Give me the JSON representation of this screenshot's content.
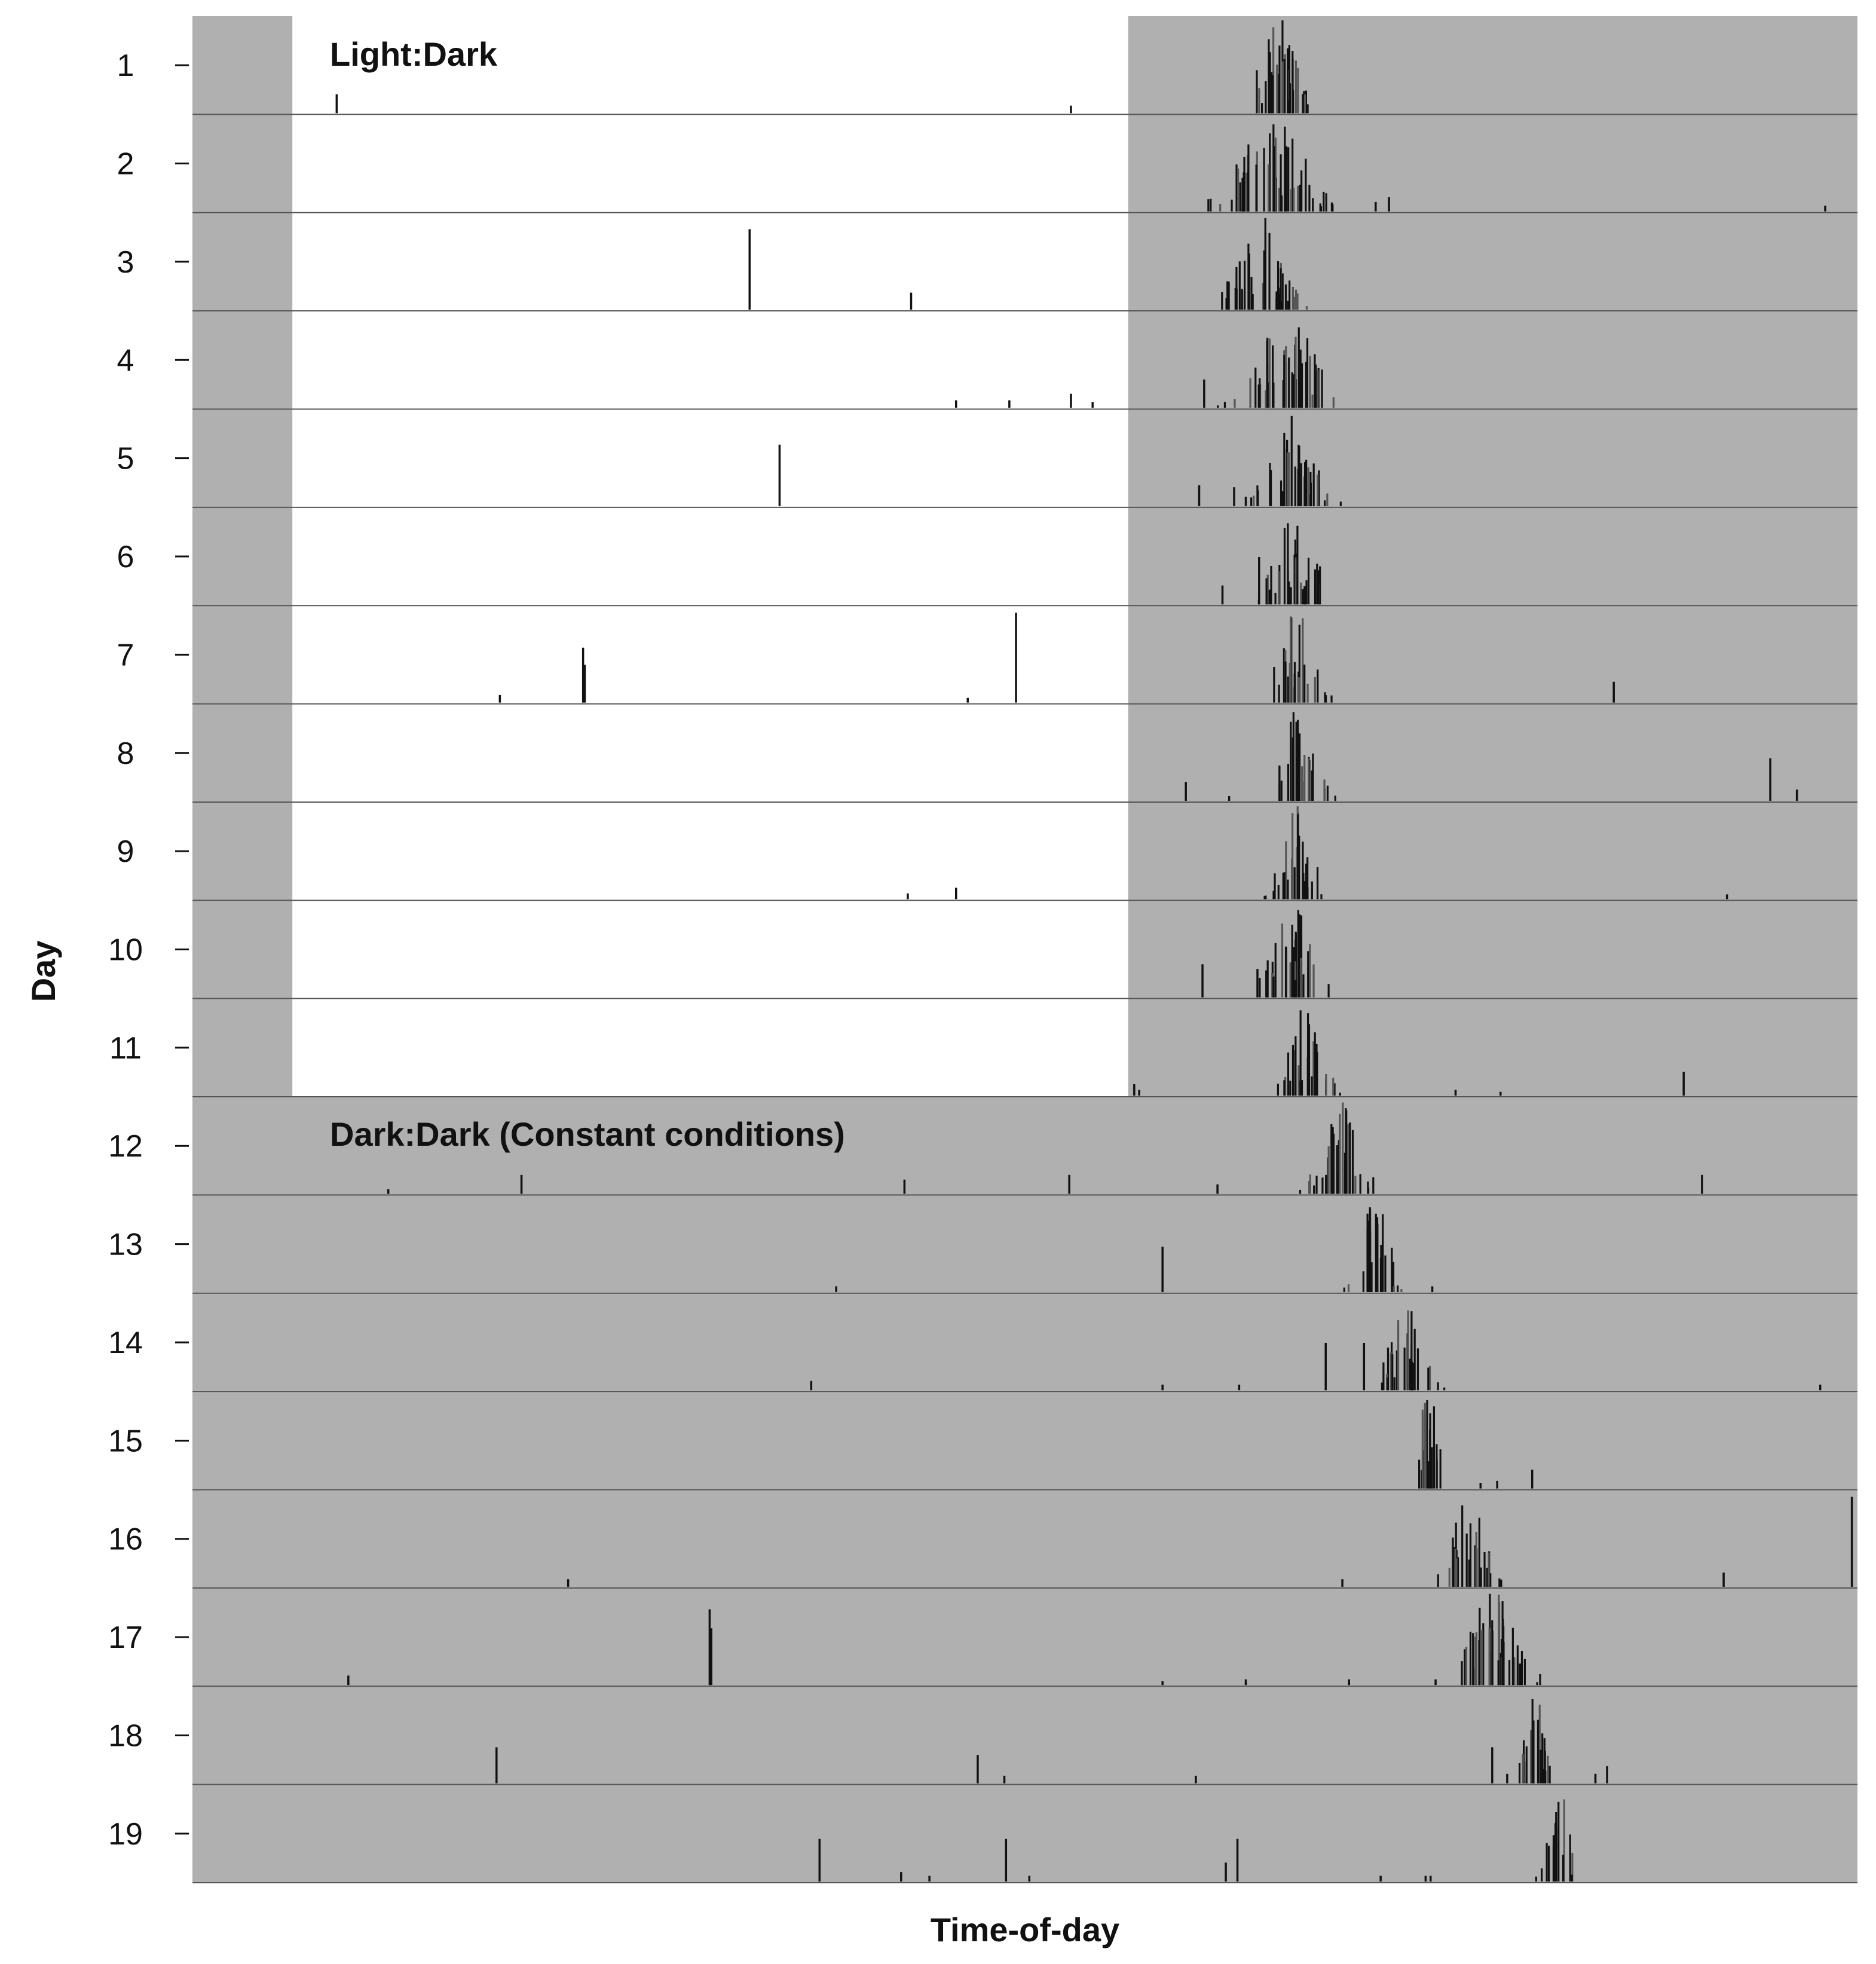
{
  "chart_data": {
    "type": "actogram",
    "xlabel": "Time-of-day",
    "ylabel": "Day",
    "days": [
      1,
      2,
      3,
      4,
      5,
      6,
      7,
      8,
      9,
      10,
      11,
      12,
      13,
      14,
      15,
      16,
      17,
      18,
      19
    ],
    "x_range": [
      0,
      1
    ],
    "light_dark_boundary_day": 11,
    "light_phase": [
      0.06,
      0.562
    ],
    "annotations": [
      {
        "text": "Light:Dark",
        "day": 1
      },
      {
        "text": "Dark:Dark (Constant conditions)",
        "day": 12
      }
    ],
    "colors": {
      "dark": "#b0b0b0",
      "light": "#ffffff",
      "activity": "#111111",
      "row_line": "#555555"
    },
    "activity_onsets": [
      {
        "day": 1,
        "center": 0.652,
        "width": 0.038
      },
      {
        "day": 2,
        "center": 0.648,
        "width": 0.06
      },
      {
        "day": 3,
        "center": 0.641,
        "width": 0.04
      },
      {
        "day": 4,
        "center": 0.657,
        "width": 0.052
      },
      {
        "day": 5,
        "center": 0.66,
        "width": 0.04
      },
      {
        "day": 6,
        "center": 0.662,
        "width": 0.035
      },
      {
        "day": 7,
        "center": 0.662,
        "width": 0.03
      },
      {
        "day": 8,
        "center": 0.664,
        "width": 0.03
      },
      {
        "day": 9,
        "center": 0.663,
        "width": 0.03
      },
      {
        "day": 10,
        "center": 0.66,
        "width": 0.035
      },
      {
        "day": 11,
        "center": 0.668,
        "width": 0.03
      },
      {
        "day": 12,
        "center": 0.69,
        "width": 0.035
      },
      {
        "day": 13,
        "center": 0.71,
        "width": 0.025
      },
      {
        "day": 14,
        "center": 0.728,
        "width": 0.03
      },
      {
        "day": 15,
        "center": 0.742,
        "width": 0.02
      },
      {
        "day": 16,
        "center": 0.765,
        "width": 0.03
      },
      {
        "day": 17,
        "center": 0.78,
        "width": 0.045
      },
      {
        "day": 18,
        "center": 0.805,
        "width": 0.02
      },
      {
        "day": 19,
        "center": 0.82,
        "width": 0.02
      }
    ],
    "sporadic_events": [
      {
        "day": 1,
        "x": 0.086,
        "h": 0.2
      },
      {
        "day": 1,
        "x": 0.527,
        "h": 0.08
      },
      {
        "day": 2,
        "x": 0.71,
        "h": 0.1
      },
      {
        "day": 2,
        "x": 0.718,
        "h": 0.15
      },
      {
        "day": 2,
        "x": 0.98,
        "h": 0.06
      },
      {
        "day": 3,
        "x": 0.334,
        "h": 0.85
      },
      {
        "day": 3,
        "x": 0.431,
        "h": 0.18
      },
      {
        "day": 3,
        "x": 0.621,
        "h": 0.3
      },
      {
        "day": 4,
        "x": 0.458,
        "h": 0.08
      },
      {
        "day": 4,
        "x": 0.49,
        "h": 0.08
      },
      {
        "day": 4,
        "x": 0.527,
        "h": 0.15
      },
      {
        "day": 4,
        "x": 0.54,
        "h": 0.06
      },
      {
        "day": 4,
        "x": 0.607,
        "h": 0.3
      },
      {
        "day": 5,
        "x": 0.352,
        "h": 0.65
      },
      {
        "day": 5,
        "x": 0.604,
        "h": 0.22
      },
      {
        "day": 5,
        "x": 0.625,
        "h": 0.2
      },
      {
        "day": 5,
        "x": 0.632,
        "h": 0.1
      },
      {
        "day": 6,
        "x": 0.618,
        "h": 0.2
      },
      {
        "day": 6,
        "x": 0.64,
        "h": 0.5
      },
      {
        "day": 7,
        "x": 0.184,
        "h": 0.08
      },
      {
        "day": 7,
        "x": 0.234,
        "h": 0.58
      },
      {
        "day": 7,
        "x": 0.235,
        "h": 0.4
      },
      {
        "day": 7,
        "x": 0.465,
        "h": 0.05
      },
      {
        "day": 7,
        "x": 0.494,
        "h": 0.95
      },
      {
        "day": 7,
        "x": 0.853,
        "h": 0.22
      },
      {
        "day": 8,
        "x": 0.596,
        "h": 0.2
      },
      {
        "day": 8,
        "x": 0.622,
        "h": 0.05
      },
      {
        "day": 8,
        "x": 0.947,
        "h": 0.45
      },
      {
        "day": 8,
        "x": 0.963,
        "h": 0.12
      },
      {
        "day": 9,
        "x": 0.429,
        "h": 0.06
      },
      {
        "day": 9,
        "x": 0.458,
        "h": 0.12
      },
      {
        "day": 9,
        "x": 0.921,
        "h": 0.05
      },
      {
        "day": 10,
        "x": 0.606,
        "h": 0.35
      },
      {
        "day": 10,
        "x": 0.639,
        "h": 0.3
      },
      {
        "day": 11,
        "x": 0.565,
        "h": 0.12
      },
      {
        "day": 11,
        "x": 0.568,
        "h": 0.06
      },
      {
        "day": 11,
        "x": 0.758,
        "h": 0.06
      },
      {
        "day": 11,
        "x": 0.785,
        "h": 0.04
      },
      {
        "day": 11,
        "x": 0.895,
        "h": 0.25
      },
      {
        "day": 12,
        "x": 0.117,
        "h": 0.05
      },
      {
        "day": 12,
        "x": 0.197,
        "h": 0.2
      },
      {
        "day": 12,
        "x": 0.427,
        "h": 0.15
      },
      {
        "day": 12,
        "x": 0.526,
        "h": 0.2
      },
      {
        "day": 12,
        "x": 0.615,
        "h": 0.1
      },
      {
        "day": 12,
        "x": 0.906,
        "h": 0.2
      },
      {
        "day": 13,
        "x": 0.386,
        "h": 0.06
      },
      {
        "day": 13,
        "x": 0.582,
        "h": 0.48
      },
      {
        "day": 13,
        "x": 0.744,
        "h": 0.06
      },
      {
        "day": 14,
        "x": 0.371,
        "h": 0.1
      },
      {
        "day": 14,
        "x": 0.582,
        "h": 0.06
      },
      {
        "day": 14,
        "x": 0.628,
        "h": 0.06
      },
      {
        "day": 14,
        "x": 0.68,
        "h": 0.5
      },
      {
        "day": 14,
        "x": 0.703,
        "h": 0.5
      },
      {
        "day": 14,
        "x": 0.977,
        "h": 0.06
      },
      {
        "day": 15,
        "x": 0.773,
        "h": 0.06
      },
      {
        "day": 15,
        "x": 0.783,
        "h": 0.08
      },
      {
        "day": 15,
        "x": 0.804,
        "h": 0.2
      },
      {
        "day": 16,
        "x": 0.225,
        "h": 0.08
      },
      {
        "day": 16,
        "x": 0.69,
        "h": 0.08
      },
      {
        "day": 16,
        "x": 0.919,
        "h": 0.15
      },
      {
        "day": 16,
        "x": 0.996,
        "h": 0.95
      },
      {
        "day": 17,
        "x": 0.093,
        "h": 0.1
      },
      {
        "day": 17,
        "x": 0.31,
        "h": 0.8
      },
      {
        "day": 17,
        "x": 0.311,
        "h": 0.6
      },
      {
        "day": 17,
        "x": 0.582,
        "h": 0.04
      },
      {
        "day": 17,
        "x": 0.632,
        "h": 0.06
      },
      {
        "day": 17,
        "x": 0.694,
        "h": 0.06
      },
      {
        "day": 17,
        "x": 0.746,
        "h": 0.06
      },
      {
        "day": 18,
        "x": 0.182,
        "h": 0.38
      },
      {
        "day": 18,
        "x": 0.471,
        "h": 0.3
      },
      {
        "day": 18,
        "x": 0.487,
        "h": 0.08
      },
      {
        "day": 18,
        "x": 0.602,
        "h": 0.08
      },
      {
        "day": 18,
        "x": 0.78,
        "h": 0.38
      },
      {
        "day": 18,
        "x": 0.789,
        "h": 0.1
      },
      {
        "day": 18,
        "x": 0.842,
        "h": 0.1
      },
      {
        "day": 18,
        "x": 0.849,
        "h": 0.18
      },
      {
        "day": 19,
        "x": 0.376,
        "h": 0.45
      },
      {
        "day": 19,
        "x": 0.425,
        "h": 0.1
      },
      {
        "day": 19,
        "x": 0.442,
        "h": 0.06
      },
      {
        "day": 19,
        "x": 0.488,
        "h": 0.45
      },
      {
        "day": 19,
        "x": 0.502,
        "h": 0.06
      },
      {
        "day": 19,
        "x": 0.62,
        "h": 0.2
      },
      {
        "day": 19,
        "x": 0.627,
        "h": 0.45
      },
      {
        "day": 19,
        "x": 0.713,
        "h": 0.06
      },
      {
        "day": 19,
        "x": 0.74,
        "h": 0.06
      },
      {
        "day": 19,
        "x": 0.743,
        "h": 0.06
      }
    ]
  }
}
